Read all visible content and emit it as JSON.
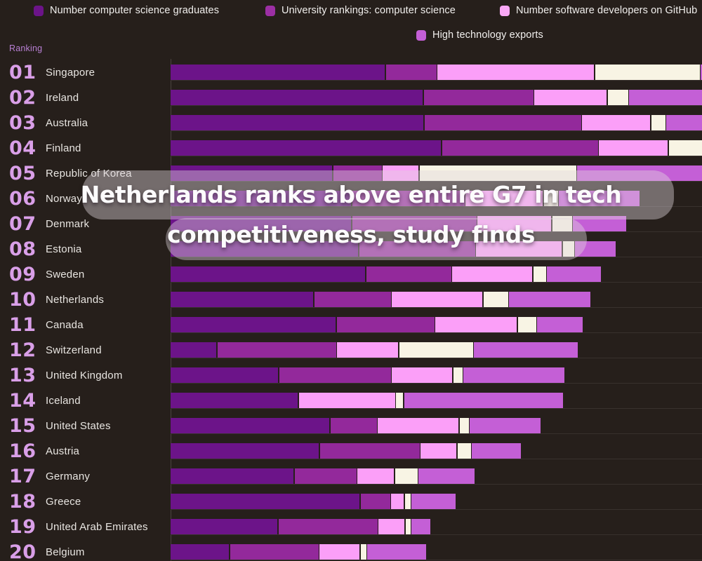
{
  "legend": {
    "items": [
      {
        "label": "Number computer science graduates",
        "color": "#6c1489"
      },
      {
        "label": "University rankings: computer science",
        "color": "#9c2fa4"
      },
      {
        "label": "Number software developers on GitHub",
        "color": "#f9a8f6"
      },
      {
        "label": "High technology exports",
        "color": "#c45fd6"
      }
    ]
  },
  "ranking_header": "Ranking",
  "headline": {
    "line1": "Netherlands ranks above entire G7 in tech",
    "line2": "competitiveness, study finds"
  },
  "chart_data": {
    "type": "bar",
    "orientation": "horizontal",
    "title": "Netherlands ranks above entire G7 in tech competitiveness, study finds",
    "xlabel": "",
    "ylabel": "Ranking",
    "legend_position": "top",
    "grid": "row-separators",
    "note": "Stacked bars; units not shown, segment values estimated in pixels of bar length. Fourth (cream) series legend label is cut off outside the visible image.",
    "series_names": [
      "Number computer science graduates",
      "University rankings: computer science",
      "Number software developers on GitHub",
      "unlabeled (legend cut off)",
      "High technology exports"
    ],
    "series_colors": [
      "#6c1489",
      "#93299b",
      "#fb9ff8",
      "#f8f4e4",
      "#c45fd6"
    ],
    "rows": [
      {
        "rank": "01",
        "country": "Singapore",
        "segments": [
          305,
          72,
          223,
          149,
          15
        ]
      },
      {
        "rank": "02",
        "country": "Ireland",
        "segments": [
          359,
          156,
          103,
          29,
          120
        ]
      },
      {
        "rank": "03",
        "country": "Australia",
        "segments": [
          360,
          223,
          97,
          20,
          67
        ]
      },
      {
        "rank": "04",
        "country": "Finland",
        "segments": [
          385,
          222,
          98,
          62,
          0
        ]
      },
      {
        "rank": "05",
        "country": "Republic of Korea",
        "segments": [
          230,
          69,
          51,
          223,
          194
        ]
      },
      {
        "rank": "06",
        "country": "Norway",
        "segments": [
          257,
          160,
          110,
          20,
          115
        ]
      },
      {
        "rank": "07",
        "country": "Denmark",
        "segments": [
          257,
          177,
          105,
          28,
          76
        ]
      },
      {
        "rank": "08",
        "country": "Estonia",
        "segments": [
          267,
          165,
          122,
          16,
          58
        ]
      },
      {
        "rank": "09",
        "country": "Sweden",
        "segments": [
          277,
          121,
          114,
          18,
          77
        ]
      },
      {
        "rank": "10",
        "country": "Netherlands",
        "segments": [
          203,
          109,
          129,
          35,
          116
        ]
      },
      {
        "rank": "11",
        "country": "Canada",
        "segments": [
          235,
          139,
          116,
          26,
          65
        ]
      },
      {
        "rank": "12",
        "country": "Switzerland",
        "segments": [
          65,
          169,
          87,
          105,
          148
        ]
      },
      {
        "rank": "13",
        "country": "United Kingdom",
        "segments": [
          153,
          159,
          86,
          13,
          144
        ]
      },
      {
        "rank": "14",
        "country": "Iceland",
        "segments": [
          181,
          0,
          137,
          10,
          226
        ]
      },
      {
        "rank": "15",
        "country": "United States",
        "segments": [
          226,
          66,
          115,
          13,
          101
        ]
      },
      {
        "rank": "16",
        "country": "Austria",
        "segments": [
          211,
          142,
          51,
          19,
          70
        ]
      },
      {
        "rank": "17",
        "country": "Germany",
        "segments": [
          175,
          88,
          52,
          32,
          80
        ]
      },
      {
        "rank": "18",
        "country": "Greece",
        "segments": [
          269,
          42,
          18,
          8,
          63
        ]
      },
      {
        "rank": "19",
        "country": "United Arab Emirates",
        "segments": [
          152,
          141,
          37,
          7,
          27
        ]
      },
      {
        "rank": "20",
        "country": "Belgium",
        "segments": [
          83,
          126,
          57,
          8,
          84
        ]
      }
    ]
  },
  "colors": {
    "background": "#261f1b",
    "rank_number": "#d99fe8",
    "country_label": "#e8e5e1",
    "ranking_header": "#b77fd2",
    "gridline": "#38312d",
    "overlay_text": "#fcfbfc"
  }
}
